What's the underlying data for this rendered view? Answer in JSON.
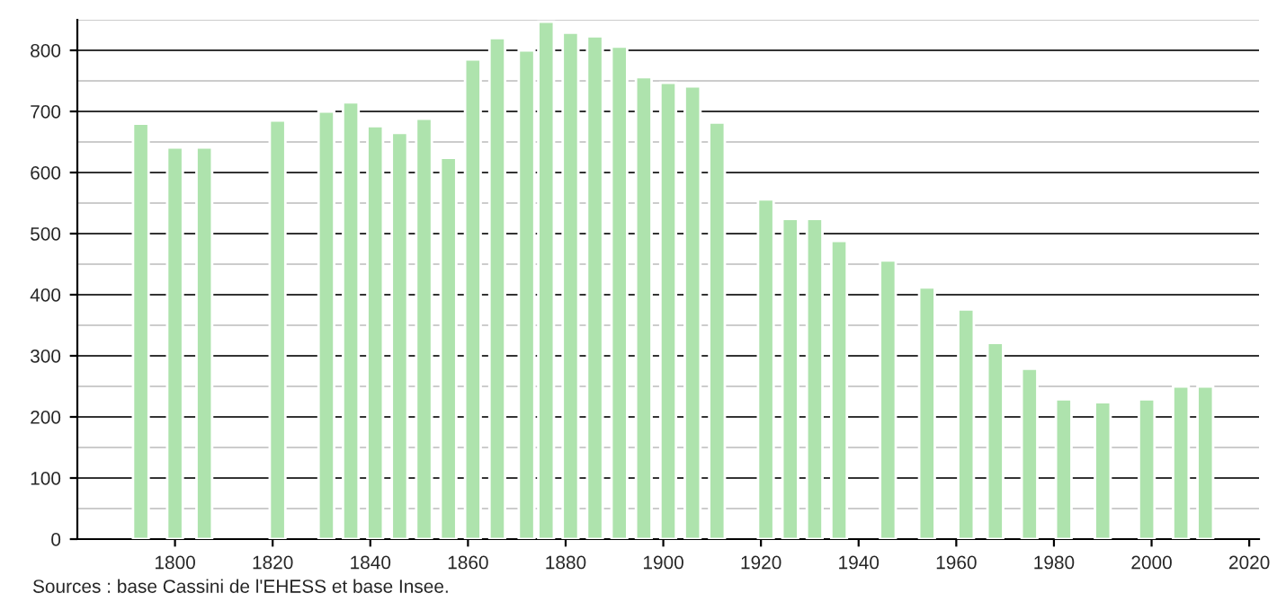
{
  "chart_data": {
    "type": "bar",
    "x": [
      1793,
      1800,
      1806,
      1821,
      1831,
      1836,
      1841,
      1846,
      1851,
      1856,
      1861,
      1866,
      1872,
      1876,
      1881,
      1886,
      1891,
      1896,
      1901,
      1906,
      1911,
      1921,
      1926,
      1931,
      1936,
      1946,
      1954,
      1962,
      1968,
      1975,
      1982,
      1990,
      1999,
      2006,
      2011
    ],
    "values": [
      680,
      641,
      641,
      685,
      700,
      715,
      676,
      665,
      688,
      624,
      785,
      820,
      800,
      847,
      829,
      823,
      806,
      756,
      747,
      741,
      682,
      556,
      524,
      524,
      488,
      456,
      412,
      376,
      321,
      279,
      229,
      224,
      229,
      250,
      250
    ],
    "color": "#aee3ad",
    "xlim": [
      1780,
      2022
    ],
    "xticks": [
      1800,
      1820,
      1840,
      1860,
      1880,
      1900,
      1920,
      1940,
      1960,
      1980,
      2000,
      2020
    ],
    "ylim": [
      0,
      850
    ],
    "yticks": [
      0,
      100,
      200,
      300,
      400,
      500,
      600,
      700,
      800
    ],
    "grid": "y",
    "annotations": [
      "Sources : base Cassini de l'EHESS et base Insee."
    ]
  }
}
